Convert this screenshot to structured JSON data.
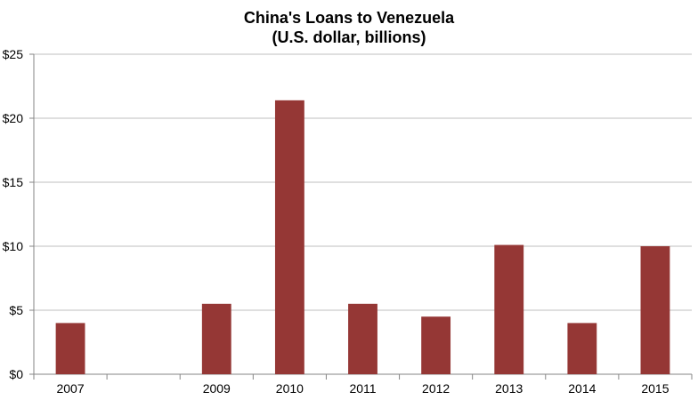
{
  "chart_data": {
    "type": "bar",
    "title_lines": [
      "China's Loans to Venezuela",
      "(U.S. dollar, billions)"
    ],
    "categories": [
      "2007",
      "",
      "2009",
      "2010",
      "2011",
      "2012",
      "2013",
      "2014",
      "2015"
    ],
    "values": [
      4,
      null,
      5.5,
      21.4,
      5.5,
      4.5,
      10.1,
      4,
      10
    ],
    "y_tick_labels": [
      "$0",
      "$5",
      "$10",
      "$15",
      "$20",
      "$25"
    ],
    "y_ticks": [
      0,
      5,
      10,
      15,
      20,
      25
    ],
    "ylim": [
      0,
      25
    ],
    "grid": true,
    "legend": "none",
    "bar_color": "#953735",
    "grid_color": "#bfbfbf",
    "axis_color": "#868686"
  }
}
